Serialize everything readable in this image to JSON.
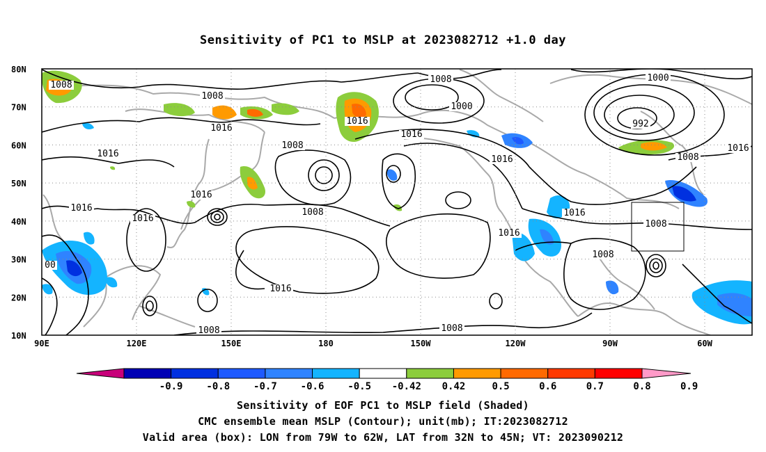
{
  "title": "Sensitivity of PC1 to MSLP at 2023082712 +1.0 day",
  "map": {
    "lat_labels": [
      "80N",
      "70N",
      "60N",
      "50N",
      "40N",
      "30N",
      "20N",
      "10N"
    ],
    "lon_labels": [
      "90E",
      "120E",
      "150E",
      "180",
      "150W",
      "120W",
      "90W",
      "60W"
    ],
    "contour_labels": [
      "1008",
      "1008",
      "1016",
      "1008",
      "1000",
      "1016",
      "1016",
      "1016",
      "1000",
      "992",
      "1008",
      "1016",
      "1016",
      "1008",
      "1016",
      "1008",
      "1016",
      "1016",
      "1016",
      "1016",
      "1008",
      "1008",
      "1016",
      "1016",
      "1008",
      "00",
      "1008"
    ],
    "valid_box": {
      "lon_from": "79W",
      "lon_to": "62W",
      "lat_from": "32N",
      "lat_to": "45N"
    }
  },
  "colorbar": {
    "labels": [
      "-0.9",
      "-0.8",
      "-0.7",
      "-0.6",
      "-0.5",
      "-0.42",
      "0.42",
      "0.5",
      "0.6",
      "0.7",
      "0.8",
      "0.9"
    ],
    "colors": [
      "#c8007a",
      "#0000b4",
      "#0030e0",
      "#1e5aff",
      "#2f83ff",
      "#14b4ff",
      "#ffffff",
      "#8ccd3c",
      "#ff9a00",
      "#ff6a00",
      "#ff3a00",
      "#ff0000",
      "#ff9ac8"
    ]
  },
  "captions": [
    "Sensitivity of EOF PC1 to MSLP field (Shaded)",
    "CMC ensemble mean MSLP (Contour); unit(mb); IT:2023082712",
    "Valid area (box): LON from 79W to 62W, LAT from 32N to 45N; VT: 2023090212"
  ]
}
